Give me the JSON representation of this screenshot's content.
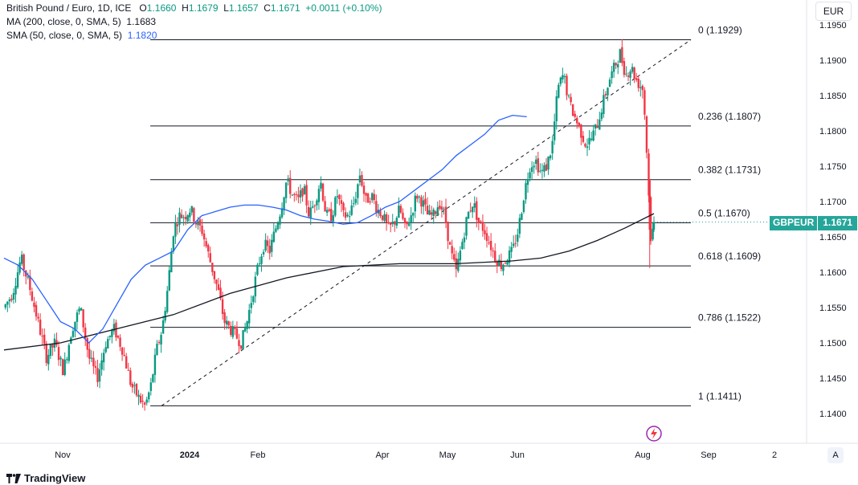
{
  "legend": {
    "title": "British Pound / Euro, 1D, ICE",
    "ohlc_o_label": "O",
    "ohlc_o": "1.1660",
    "ohlc_h_label": "H",
    "ohlc_h": "1.1679",
    "ohlc_l_label": "L",
    "ohlc_l": "1.1657",
    "ohlc_c_label": "C",
    "ohlc_c": "1.1671",
    "change": "+0.0011 (+0.10%)",
    "ma200_label": "MA (200, close, 0, SMA, 5)",
    "ma200_value": "1.1683",
    "sma50_label": "SMA (50, close, 0, SMA, 5)",
    "sma50_value": "1.1820"
  },
  "currency_button": "EUR",
  "auto_button": "A",
  "symbol_badge": "GBPEUR",
  "price_badge": "1.1671",
  "footer_brand": "TradingView",
  "colors": {
    "up": "#089981",
    "down": "#f23645",
    "sma50": "#2962ff",
    "ma200": "#131722",
    "badge": "#26a69a"
  },
  "chart_data": {
    "type": "candlestick",
    "y_axis": {
      "min": 1.137,
      "max": 1.197,
      "ticks": [
        "1.1950",
        "1.1900",
        "1.1850",
        "1.1800",
        "1.1750",
        "1.1700",
        "1.1650",
        "1.1600",
        "1.1550",
        "1.1500",
        "1.1450",
        "1.1400"
      ]
    },
    "x_axis": {
      "labels": [
        "Nov",
        "2024",
        "Feb",
        "Apr",
        "May",
        "Jun",
        "Aug",
        "Sep",
        "2"
      ]
    },
    "fibonacci": [
      {
        "label": "0 (1.1929)",
        "value": 1.1929
      },
      {
        "label": "0.236 (1.1807)",
        "value": 1.1807
      },
      {
        "label": "0.382 (1.1731)",
        "value": 1.1731
      },
      {
        "label": "0.5 (1.1670)",
        "value": 1.167
      },
      {
        "label": "0.618 (1.1609)",
        "value": 1.1609
      },
      {
        "label": "0.786 (1.1522)",
        "value": 1.1522
      },
      {
        "label": "1 (1.1411)",
        "value": 1.1411
      }
    ],
    "trendline": {
      "from_day": 103,
      "from_value": 1.1411,
      "to_day": 286,
      "to_value": 1.1929
    },
    "fib_start_day": 95,
    "fib_end_day": 286,
    "first_day_offset": 0,
    "anchors": [
      [
        0,
        1.155
      ],
      [
        6,
        1.157
      ],
      [
        12,
        1.162
      ],
      [
        18,
        1.158
      ],
      [
        24,
        1.153
      ],
      [
        30,
        1.148
      ],
      [
        36,
        1.15
      ],
      [
        42,
        1.146
      ],
      [
        48,
        1.152
      ],
      [
        54,
        1.155
      ],
      [
        60,
        1.148
      ],
      [
        66,
        1.145
      ],
      [
        72,
        1.15
      ],
      [
        78,
        1.152
      ],
      [
        84,
        1.149
      ],
      [
        90,
        1.144
      ],
      [
        96,
        1.142
      ],
      [
        100,
        1.141
      ],
      [
        104,
        1.144
      ],
      [
        108,
        1.149
      ],
      [
        112,
        1.152
      ],
      [
        116,
        1.158
      ],
      [
        120,
        1.166
      ],
      [
        124,
        1.168
      ],
      [
        128,
        1.168
      ],
      [
        132,
        1.169
      ],
      [
        136,
        1.167
      ],
      [
        140,
        1.166
      ],
      [
        144,
        1.163
      ],
      [
        148,
        1.16
      ],
      [
        152,
        1.157
      ],
      [
        156,
        1.153
      ],
      [
        160,
        1.152
      ],
      [
        164,
        1.151
      ],
      [
        168,
        1.15
      ],
      [
        172,
        1.153
      ],
      [
        176,
        1.157
      ],
      [
        180,
        1.161
      ],
      [
        184,
        1.164
      ],
      [
        188,
        1.163
      ],
      [
        192,
        1.166
      ],
      [
        196,
        1.169
      ],
      [
        200,
        1.173
      ],
      [
        204,
        1.171
      ],
      [
        208,
        1.17
      ],
      [
        212,
        1.172
      ],
      [
        216,
        1.168
      ],
      [
        220,
        1.17
      ],
      [
        224,
        1.173
      ],
      [
        228,
        1.168
      ],
      [
        232,
        1.168
      ],
      [
        236,
        1.171
      ],
      [
        240,
        1.168
      ],
      [
        244,
        1.168
      ],
      [
        248,
        1.17
      ],
      [
        252,
        1.174
      ],
      [
        256,
        1.17
      ],
      [
        260,
        1.171
      ],
      [
        264,
        1.169
      ],
      [
        268,
        1.168
      ],
      [
        272,
        1.166
      ],
      [
        276,
        1.167
      ],
      [
        280,
        1.169
      ],
      [
        284,
        1.166
      ],
      [
        288,
        1.168
      ],
      [
        292,
        1.171
      ],
      [
        296,
        1.17
      ],
      [
        300,
        1.168
      ],
      [
        304,
        1.168
      ],
      [
        308,
        1.17
      ],
      [
        312,
        1.168
      ],
      [
        316,
        1.163
      ],
      [
        320,
        1.16
      ],
      [
        324,
        1.164
      ],
      [
        328,
        1.168
      ],
      [
        332,
        1.17
      ],
      [
        336,
        1.167
      ],
      [
        340,
        1.166
      ],
      [
        344,
        1.164
      ],
      [
        348,
        1.162
      ],
      [
        352,
        1.161
      ],
      [
        356,
        1.162
      ],
      [
        360,
        1.163
      ],
      [
        364,
        1.166
      ],
      [
        368,
        1.171
      ],
      [
        372,
        1.175
      ],
      [
        376,
        1.176
      ],
      [
        380,
        1.174
      ],
      [
        384,
        1.175
      ],
      [
        388,
        1.178
      ],
      [
        392,
        1.186
      ],
      [
        396,
        1.188
      ],
      [
        400,
        1.184
      ],
      [
        404,
        1.182
      ],
      [
        408,
        1.18
      ],
      [
        412,
        1.178
      ],
      [
        416,
        1.179
      ],
      [
        420,
        1.181
      ],
      [
        424,
        1.184
      ],
      [
        428,
        1.187
      ],
      [
        432,
        1.189
      ],
      [
        436,
        1.191
      ],
      [
        440,
        1.188
      ],
      [
        444,
        1.189
      ],
      [
        448,
        1.187
      ],
      [
        452,
        1.186
      ],
      [
        454,
        1.181
      ],
      [
        456,
        1.172
      ],
      [
        458,
        1.164
      ],
      [
        460,
        1.167
      ]
    ],
    "ma200": [
      [
        0,
        1.149
      ],
      [
        40,
        1.15
      ],
      [
        80,
        1.152
      ],
      [
        120,
        1.154
      ],
      [
        160,
        1.157
      ],
      [
        200,
        1.1592
      ],
      [
        240,
        1.1608
      ],
      [
        280,
        1.1612
      ],
      [
        320,
        1.1612
      ],
      [
        360,
        1.1616
      ],
      [
        380,
        1.162
      ],
      [
        400,
        1.163
      ],
      [
        420,
        1.1645
      ],
      [
        440,
        1.1663
      ],
      [
        460,
        1.1683
      ]
    ],
    "sma50": [
      [
        0,
        1.162
      ],
      [
        10,
        1.161
      ],
      [
        20,
        1.159
      ],
      [
        30,
        1.156
      ],
      [
        40,
        1.153
      ],
      [
        50,
        1.152
      ],
      [
        60,
        1.15
      ],
      [
        70,
        1.152
      ],
      [
        80,
        1.1555
      ],
      [
        90,
        1.159
      ],
      [
        100,
        1.161
      ],
      [
        110,
        1.162
      ],
      [
        120,
        1.163
      ],
      [
        130,
        1.166
      ],
      [
        140,
        1.168
      ],
      [
        150,
        1.1686
      ],
      [
        160,
        1.1692
      ],
      [
        170,
        1.1695
      ],
      [
        180,
        1.1695
      ],
      [
        190,
        1.1692
      ],
      [
        200,
        1.1688
      ],
      [
        210,
        1.168
      ],
      [
        220,
        1.1675
      ],
      [
        230,
        1.1672
      ],
      [
        240,
        1.1668
      ],
      [
        250,
        1.167
      ],
      [
        260,
        1.168
      ],
      [
        270,
        1.1692
      ],
      [
        280,
        1.17
      ],
      [
        290,
        1.1715
      ],
      [
        300,
        1.173
      ],
      [
        310,
        1.1745
      ],
      [
        320,
        1.1765
      ],
      [
        330,
        1.178
      ],
      [
        340,
        1.1795
      ],
      [
        350,
        1.1815
      ],
      [
        360,
        1.1822
      ],
      [
        370,
        1.182
      ]
    ]
  }
}
